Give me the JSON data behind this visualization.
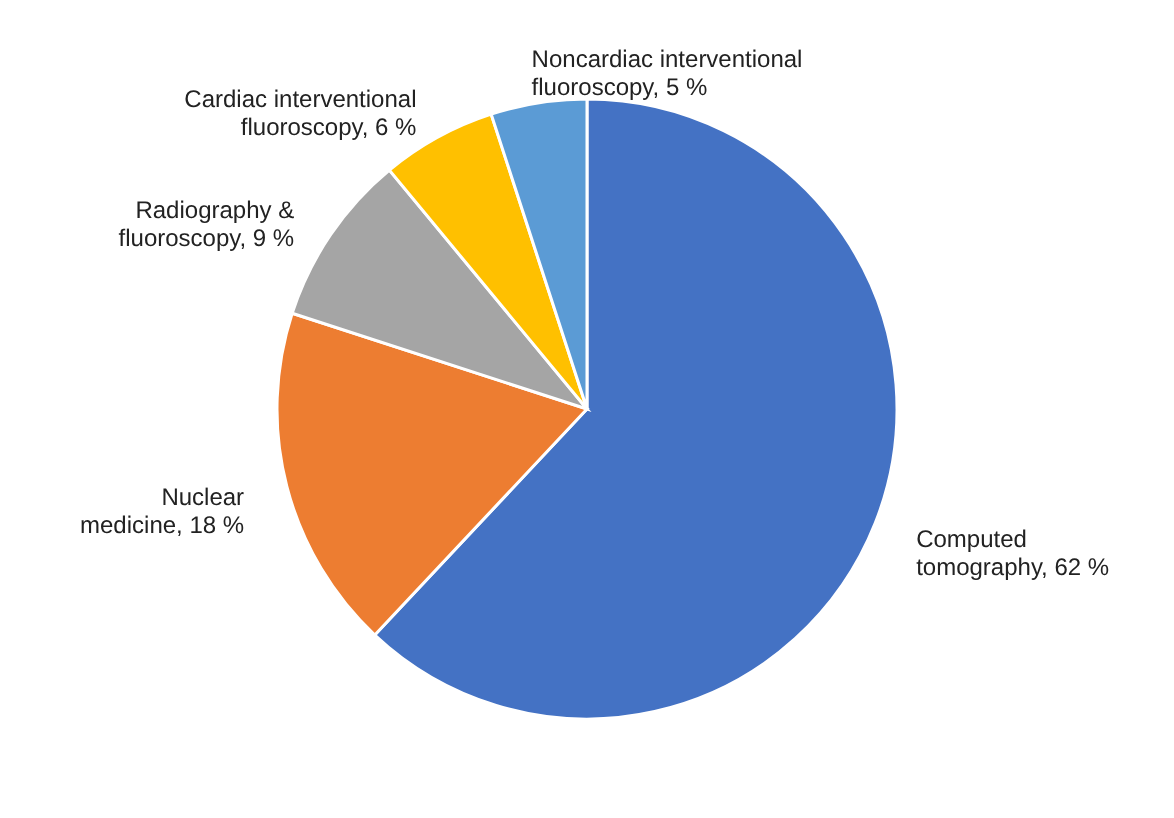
{
  "chart_data": {
    "type": "pie",
    "categories": [
      "Computed tomography",
      "Nuclear medicine",
      "Radiography & fluoroscopy",
      "Cardiac interventional fluoroscopy",
      "Noncardiac interventional fluoroscopy"
    ],
    "values": [
      62,
      18,
      9,
      6,
      5
    ],
    "value_labels": [
      "62 %",
      "18 %",
      "9 %",
      "6 %",
      "5 %"
    ],
    "colors": [
      "#4472c4",
      "#ed7d31",
      "#a5a5a5",
      "#ffc000",
      "#5b9bd5"
    ]
  }
}
